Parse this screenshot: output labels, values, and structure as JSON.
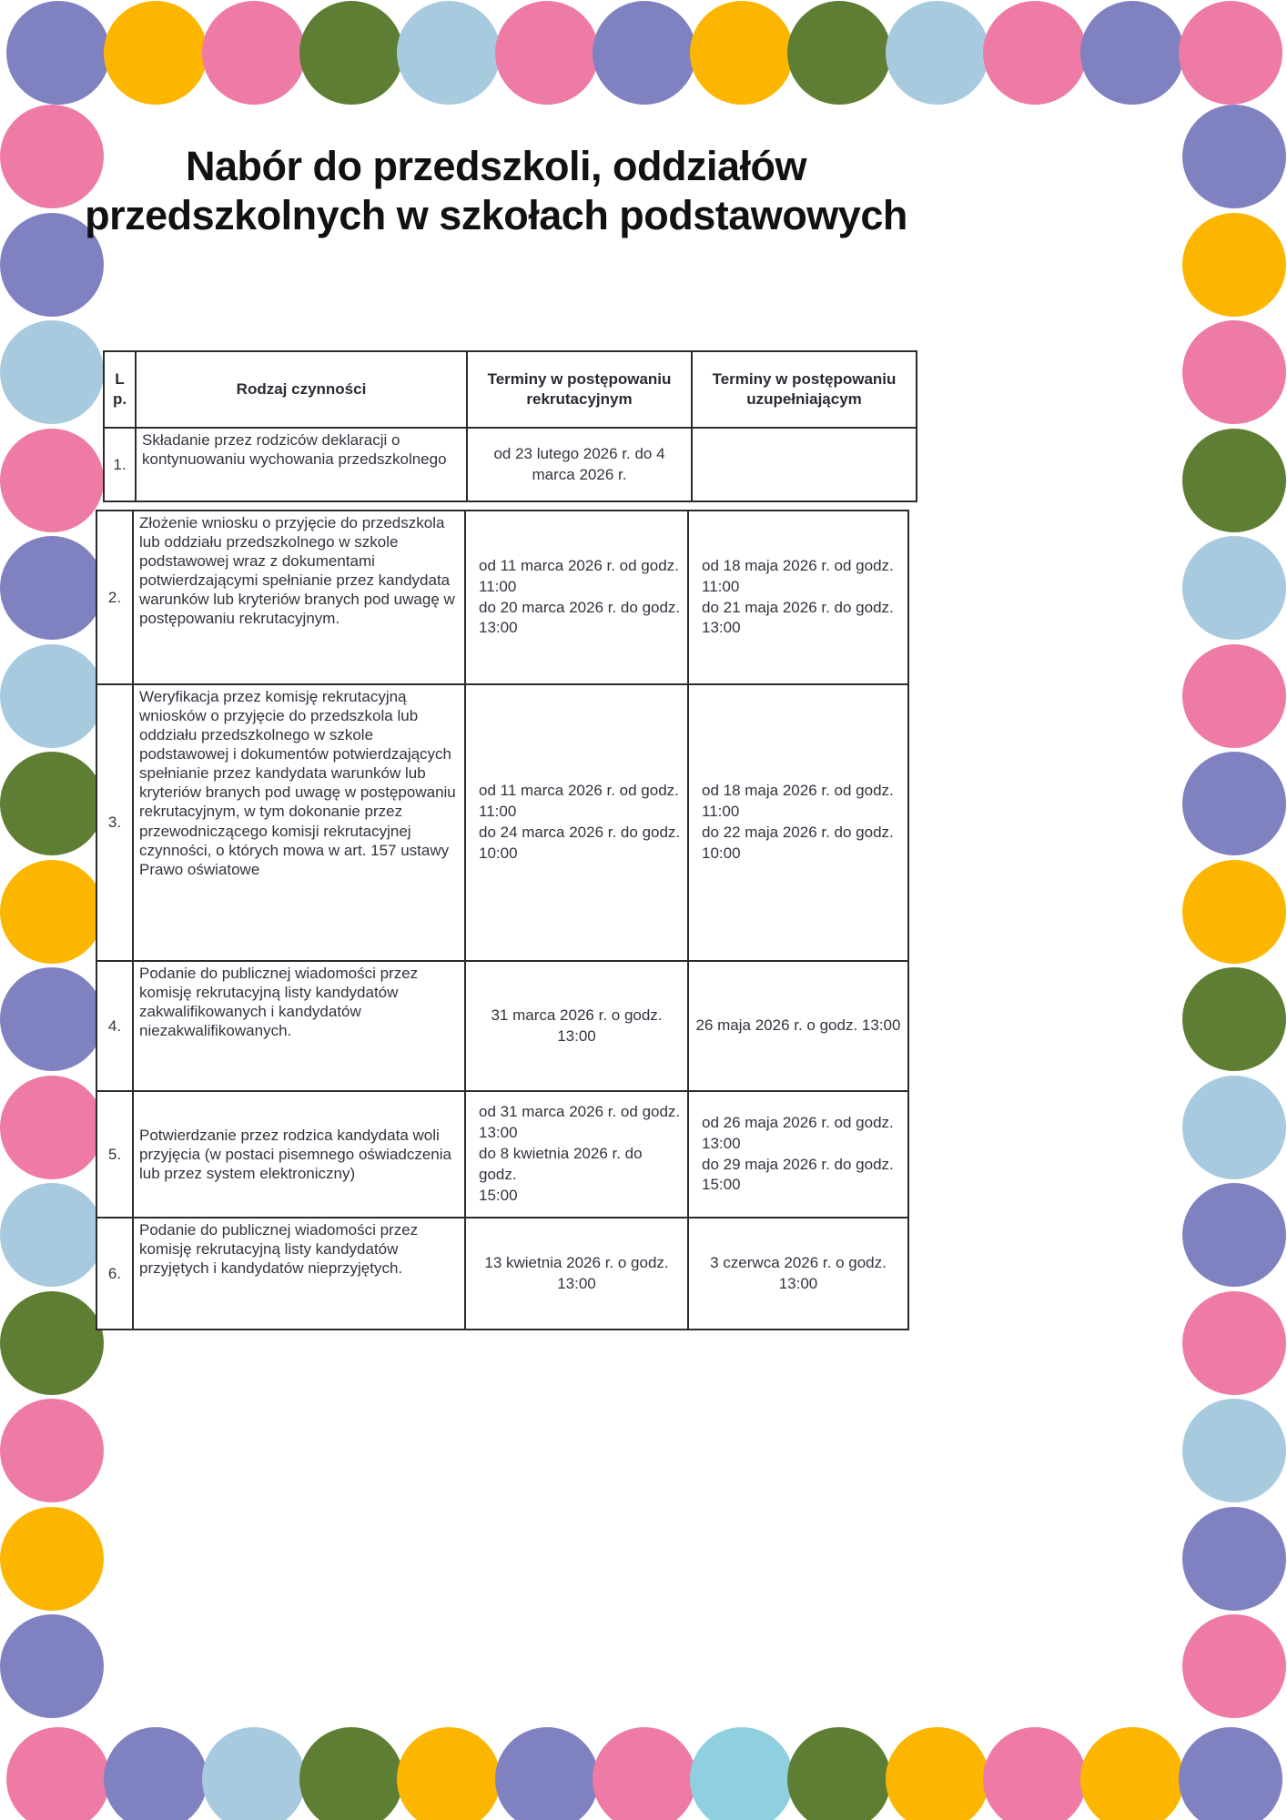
{
  "title": {
    "line1": "Nabór do przedszkoli, oddziałów",
    "line2": "przedszkolnych w szkołach podstawowych"
  },
  "table": {
    "headers": {
      "lp": "L p.",
      "activity": "Rodzaj czynności",
      "recruitment": "Terminy w postępowaniu rekrutacyjnym",
      "supplementary": "Terminy w postępowaniu uzupełniającym"
    },
    "rows": [
      {
        "lp": "1.",
        "activity": "Składanie przez  rodziców deklaracji o kontynuowaniu wychowania przedszkolnego",
        "recruitment": "od 23 lutego 2026 r. do 4 marca 2026 r.",
        "supplementary": ""
      },
      {
        "lp": "2.",
        "activity": "Złożenie wniosku o przyjęcie do przedszkola lub oddziału przedszkolnego w szkole podstawowej wraz z dokumentami potwierdzającymi spełnianie przez kandydata warunków lub kryteriów branych pod uwagę w postępowaniu rekrutacyjnym.",
        "recruitment": "od 11 marca 2026 r. od godz.\n11:00\ndo 20 marca 2026 r. do godz.\n13:00",
        "supplementary": "od 18 maja 2026 r. od godz.\n11:00\ndo 21 maja 2026 r. do godz.\n13:00"
      },
      {
        "lp": "3.",
        "activity": "Weryfikacja przez komisję rekrutacyjną wniosków o przyjęcie do przedszkola lub oddziału przedszkolnego w szkole podstawowej i dokumentów potwierdzających spełnianie przez kandydata warunków lub kryteriów branych pod uwagę w postępowaniu rekrutacyjnym, w tym dokonanie przez przewodniczącego komisji rekrutacyjnej czynności, o których mowa w art. 157 ustawy Prawo oświatowe",
        "recruitment": "od 11 marca 2026 r. od godz.\n11:00\ndo 24 marca 2026 r. do godz.\n10:00",
        "supplementary": "od 18 maja 2026 r. od godz.\n11:00\ndo 22 maja 2026 r. do godz.\n10:00"
      },
      {
        "lp": "4.",
        "activity": "Podanie do publicznej wiadomości przez komisję rekrutacyjną listy kandydatów zakwalifikowanych i kandydatów niezakwalifikowanych.",
        "recruitment": "31 marca 2026 r. o godz. 13:00",
        "supplementary": "26 maja 2026 r. o godz. 13:00"
      },
      {
        "lp": "5.",
        "activity": "Potwierdzanie przez rodzica kandydata woli przyjęcia (w postaci pisemnego oświadczenia lub przez system elektroniczny)",
        "recruitment": "od 31 marca 2026 r. od godz.\n13:00\ndo 8 kwietnia 2026 r. do godz.\n15:00",
        "supplementary": "od 26 maja 2026 r. od godz.\n13:00\ndo 29 maja 2026 r. do godz.\n15:00"
      },
      {
        "lp": "6.",
        "activity": "Podanie do publicznej wiadomości przez komisję rekrutacyjną listy kandydatów przyjętych i kandydatów nieprzyjętych.",
        "recruitment": "13 kwietnia 2026 r. o godz.\n13:00",
        "supplementary": "3 czerwca 2026 r. o godz.\n13:00"
      }
    ]
  },
  "border": {
    "colors": {
      "pink": "#ee7ba6",
      "purple": "#8081c1",
      "yellow": "#fcb600",
      "green": "#5e7e33",
      "lightblue": "#a8cadf",
      "cyan": "#8fd0e0"
    },
    "top": [
      "purple",
      "yellow",
      "pink",
      "green",
      "lightblue",
      "pink",
      "purple",
      "yellow",
      "green",
      "lightblue",
      "pink",
      "purple",
      "pink"
    ],
    "bottom": [
      "pink",
      "purple",
      "lightblue",
      "green",
      "yellow",
      "purple",
      "pink",
      "cyan",
      "green",
      "yellow",
      "pink",
      "yellow",
      "purple"
    ],
    "left": [
      "pink",
      "purple",
      "lightblue",
      "pink",
      "purple",
      "lightblue",
      "green",
      "yellow",
      "purple",
      "pink",
      "lightblue",
      "green",
      "pink",
      "yellow",
      "purple"
    ],
    "right": [
      "purple",
      "yellow",
      "pink",
      "green",
      "lightblue",
      "pink",
      "purple",
      "yellow",
      "green",
      "lightblue",
      "purple",
      "pink",
      "lightblue",
      "purple",
      "pink"
    ]
  }
}
